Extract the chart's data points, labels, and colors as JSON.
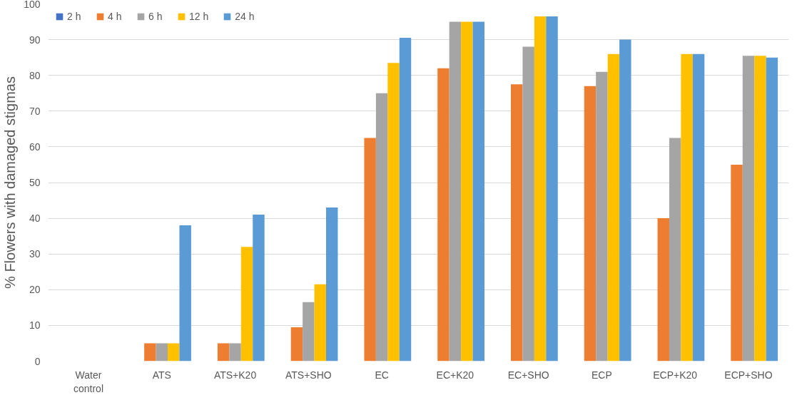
{
  "chart_data": {
    "type": "bar",
    "ylabel": "% Flowers with damaged stigmas",
    "categories": [
      "Water\ncontrol",
      "ATS",
      "ATS+K20",
      "ATS+SHO",
      "EC",
      "EC+K20",
      "EC+SHO",
      "ECP",
      "ECP+K20",
      "ECP+SHO"
    ],
    "series": [
      {
        "name": "2 h",
        "color": "#4472c4",
        "values": [
          0,
          0,
          0,
          0,
          0,
          0,
          0,
          0,
          0,
          0
        ]
      },
      {
        "name": "4 h",
        "color": "#ed7d31",
        "values": [
          0,
          5,
          5,
          9.5,
          62.5,
          82,
          77.5,
          77,
          40,
          55
        ]
      },
      {
        "name": "6 h",
        "color": "#a5a5a5",
        "values": [
          0,
          5,
          5,
          16.5,
          75,
          95,
          88,
          81,
          62.5,
          85.5
        ]
      },
      {
        "name": "12 h",
        "color": "#ffc000",
        "values": [
          0,
          5,
          32,
          21.5,
          83.5,
          95,
          96.5,
          86,
          86,
          85.5
        ]
      },
      {
        "name": "24 h",
        "color": "#5b9bd5",
        "values": [
          0,
          38,
          41,
          43,
          90.5,
          95,
          96.5,
          90,
          86,
          85
        ]
      }
    ],
    "ylim": [
      0,
      100
    ],
    "yticks": [
      0,
      10,
      20,
      30,
      40,
      50,
      60,
      70,
      80,
      90,
      100
    ],
    "grid": "y",
    "legend": "top left"
  }
}
